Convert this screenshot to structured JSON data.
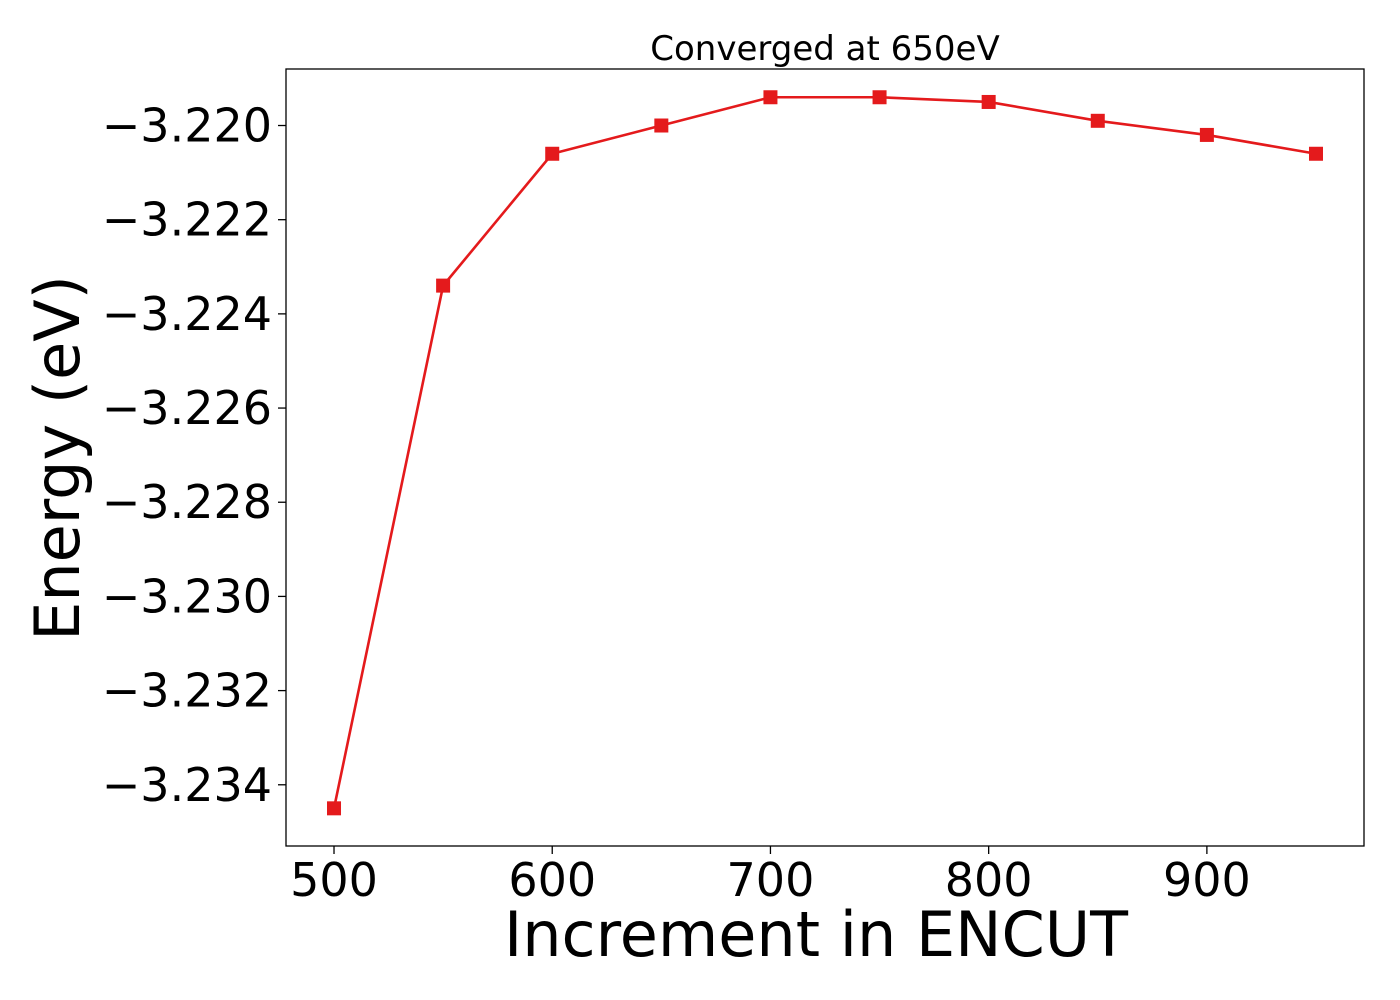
{
  "chart_data": {
    "type": "line",
    "title": "Converged at 650eV",
    "xlabel": "Increment in ENCUT",
    "ylabel": "Energy (eV)",
    "x_ticks": [
      500,
      600,
      700,
      800,
      900
    ],
    "x_tick_labels": [
      "500",
      "600",
      "700",
      "800",
      "900"
    ],
    "y_ticks": [
      -3.234,
      -3.232,
      -3.23,
      -3.228,
      -3.226,
      -3.224,
      -3.222,
      -3.22
    ],
    "y_tick_labels": [
      "−3.234",
      "−3.232",
      "−3.230",
      "−3.228",
      "−3.226",
      "−3.224",
      "−3.222",
      "−3.220"
    ],
    "xlim": [
      478,
      972
    ],
    "ylim": [
      -3.2353,
      -3.2188
    ],
    "grid": false,
    "series": [
      {
        "x": [
          500,
          550,
          600,
          650,
          700,
          750,
          800,
          850,
          900,
          950
        ],
        "y": [
          -3.2345,
          -3.2234,
          -3.2206,
          -3.22,
          -3.2194,
          -3.2194,
          -3.2195,
          -3.2199,
          -3.2202,
          -3.2206
        ],
        "color": "#e41a1c",
        "marker": "square"
      }
    ]
  }
}
